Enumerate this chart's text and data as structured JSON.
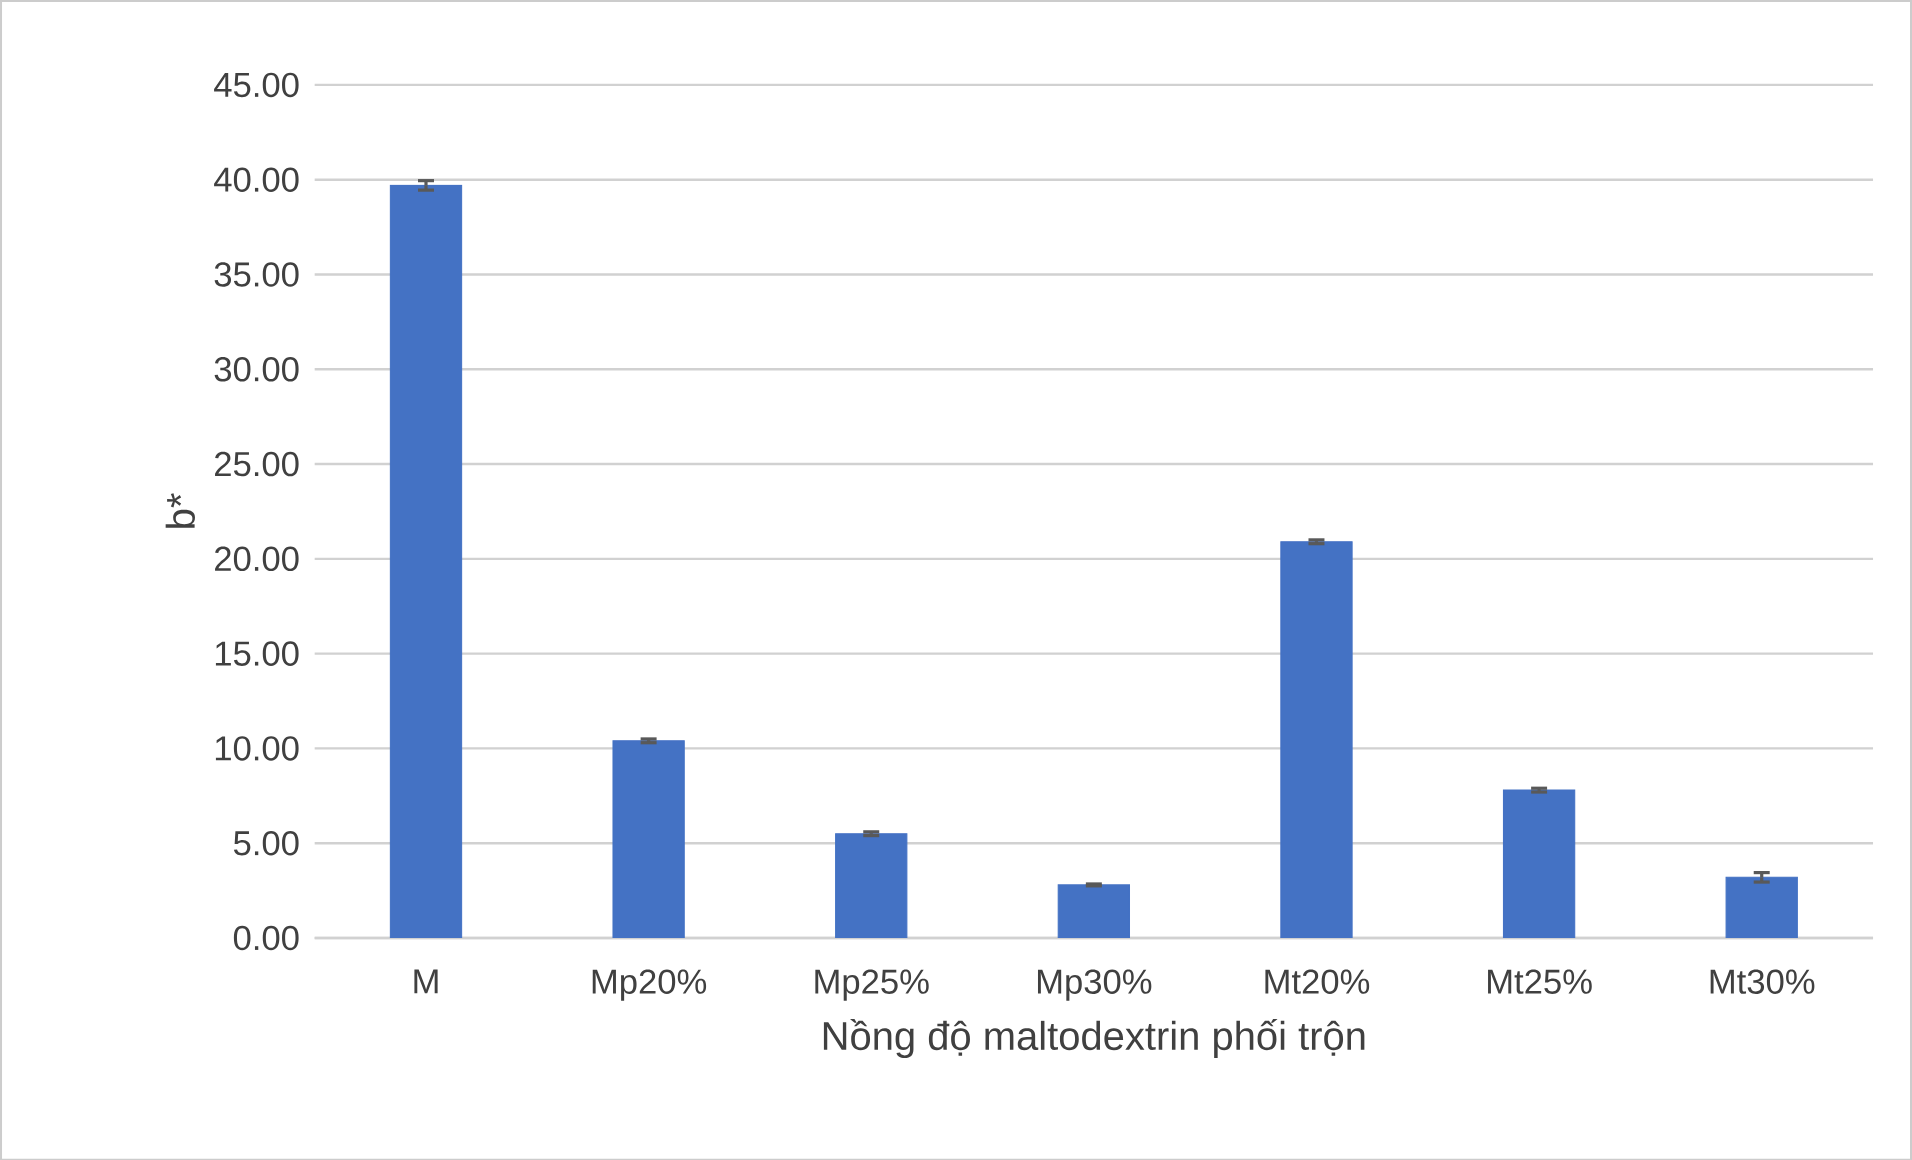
{
  "chart_data": {
    "type": "bar",
    "xlabel": "Nồng độ maltodextrin phối trộn",
    "ylabel": "b*",
    "categories": [
      "M",
      "Mp20%",
      "Mp25%",
      "Mp30%",
      "Mt20%",
      "Mt25%",
      "Mt30%"
    ],
    "values": [
      39.7,
      10.4,
      5.5,
      2.8,
      20.9,
      7.8,
      3.2
    ],
    "errors": [
      0.25,
      0.1,
      0.1,
      0.05,
      0.1,
      0.1,
      0.25
    ],
    "color": "#4472c4",
    "ylim": [
      0,
      45
    ],
    "yticks": [
      {
        "value": 0,
        "label": "0.00"
      },
      {
        "value": 5,
        "label": "5.00"
      },
      {
        "value": 10,
        "label": "10.00"
      },
      {
        "value": 15,
        "label": "15.00"
      },
      {
        "value": 20,
        "label": "20.00"
      },
      {
        "value": 25,
        "label": "25.00"
      },
      {
        "value": 30,
        "label": "30.00"
      },
      {
        "value": 35,
        "label": "35.00"
      },
      {
        "value": 40,
        "label": "40.00"
      },
      {
        "value": 45,
        "label": "45.00"
      }
    ],
    "grid": "y"
  }
}
